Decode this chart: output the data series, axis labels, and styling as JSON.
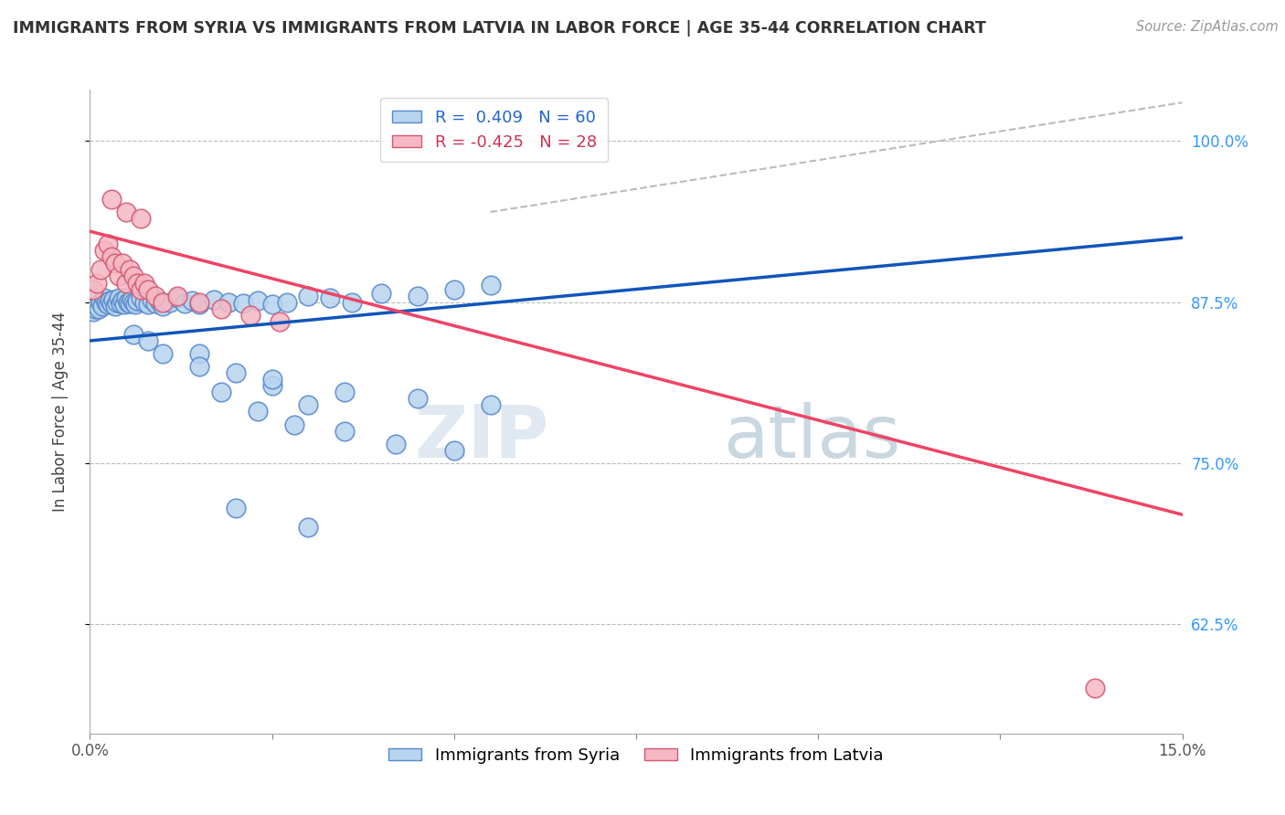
{
  "title": "IMMIGRANTS FROM SYRIA VS IMMIGRANTS FROM LATVIA IN LABOR FORCE | AGE 35-44 CORRELATION CHART",
  "source": "Source: ZipAtlas.com",
  "ylabel": "In Labor Force | Age 35-44",
  "xlim": [
    0.0,
    15.0
  ],
  "ylim": [
    54.0,
    104.0
  ],
  "ytick_vals": [
    62.5,
    75.0,
    87.5,
    100.0
  ],
  "ytick_labels": [
    "62.5%",
    "75.0%",
    "87.5%",
    "100.0%"
  ],
  "xtick_vals": [
    0.0,
    7.5,
    15.0
  ],
  "xtick_labels": [
    "0.0%",
    "",
    "15.0%"
  ],
  "syria_color": "#b8d4ee",
  "syria_edge_color": "#5588cc",
  "latvia_color": "#f5b8c4",
  "latvia_edge_color": "#d45870",
  "syria_R": 0.409,
  "syria_N": 60,
  "latvia_R": -0.425,
  "latvia_N": 28,
  "syria_line_color": "#1155bb",
  "latvia_line_color": "#ee4466",
  "dash_line_color": "#bbbbbb",
  "background_color": "#ffffff",
  "syria_x": [
    0.05,
    0.07,
    0.1,
    0.12,
    0.15,
    0.17,
    0.2,
    0.22,
    0.25,
    0.27,
    0.3,
    0.32,
    0.35,
    0.37,
    0.4,
    0.42,
    0.45,
    0.47,
    0.5,
    0.52,
    0.55,
    0.57,
    0.6,
    0.62,
    0.65,
    0.7,
    0.75,
    0.8,
    0.85,
    0.9,
    0.95,
    1.0,
    1.1,
    1.2,
    1.3,
    1.4,
    1.5,
    1.7,
    1.9,
    2.1,
    2.3,
    2.5,
    2.7,
    3.0,
    3.3,
    3.6,
    4.0,
    4.5,
    5.0,
    5.5,
    1.5,
    2.0,
    2.5,
    3.0,
    1.8,
    2.3,
    2.8,
    3.5,
    4.2,
    5.0
  ],
  "syria_y": [
    86.8,
    87.0,
    87.2,
    87.0,
    87.5,
    87.2,
    87.8,
    87.5,
    87.3,
    87.6,
    87.4,
    87.7,
    87.2,
    87.5,
    87.8,
    87.4,
    87.6,
    87.3,
    87.8,
    87.5,
    87.4,
    87.7,
    87.5,
    87.3,
    87.6,
    87.8,
    87.5,
    87.3,
    87.7,
    87.4,
    87.6,
    87.2,
    87.5,
    87.8,
    87.4,
    87.6,
    87.3,
    87.7,
    87.5,
    87.4,
    87.6,
    87.3,
    87.5,
    88.0,
    87.8,
    87.5,
    88.2,
    88.0,
    88.5,
    88.8,
    83.5,
    82.0,
    81.0,
    79.5,
    80.5,
    79.0,
    78.0,
    77.5,
    76.5,
    76.0
  ],
  "syria_x2": [
    0.6,
    0.8,
    1.0,
    1.5,
    2.5,
    3.5,
    4.5,
    5.5,
    2.0,
    3.0
  ],
  "syria_y2": [
    85.0,
    84.5,
    83.5,
    82.5,
    81.5,
    80.5,
    80.0,
    79.5,
    71.5,
    70.0
  ],
  "latvia_x": [
    0.05,
    0.1,
    0.15,
    0.2,
    0.25,
    0.3,
    0.35,
    0.4,
    0.45,
    0.5,
    0.55,
    0.6,
    0.65,
    0.7,
    0.75,
    0.8,
    0.9,
    1.0,
    1.2,
    1.5,
    1.8,
    2.2,
    2.6,
    0.3,
    0.5,
    0.7,
    13.8
  ],
  "latvia_y": [
    88.5,
    89.0,
    90.0,
    91.5,
    92.0,
    91.0,
    90.5,
    89.5,
    90.5,
    89.0,
    90.0,
    89.5,
    89.0,
    88.5,
    89.0,
    88.5,
    88.0,
    87.5,
    88.0,
    87.5,
    87.0,
    86.5,
    86.0,
    95.5,
    94.5,
    94.0,
    57.5
  ],
  "syria_tline": [
    0.0,
    15.0,
    84.5,
    92.5
  ],
  "latvia_tline": [
    0.0,
    15.0,
    93.0,
    71.0
  ],
  "dash_tline": [
    5.5,
    15.0,
    94.5,
    103.0
  ]
}
